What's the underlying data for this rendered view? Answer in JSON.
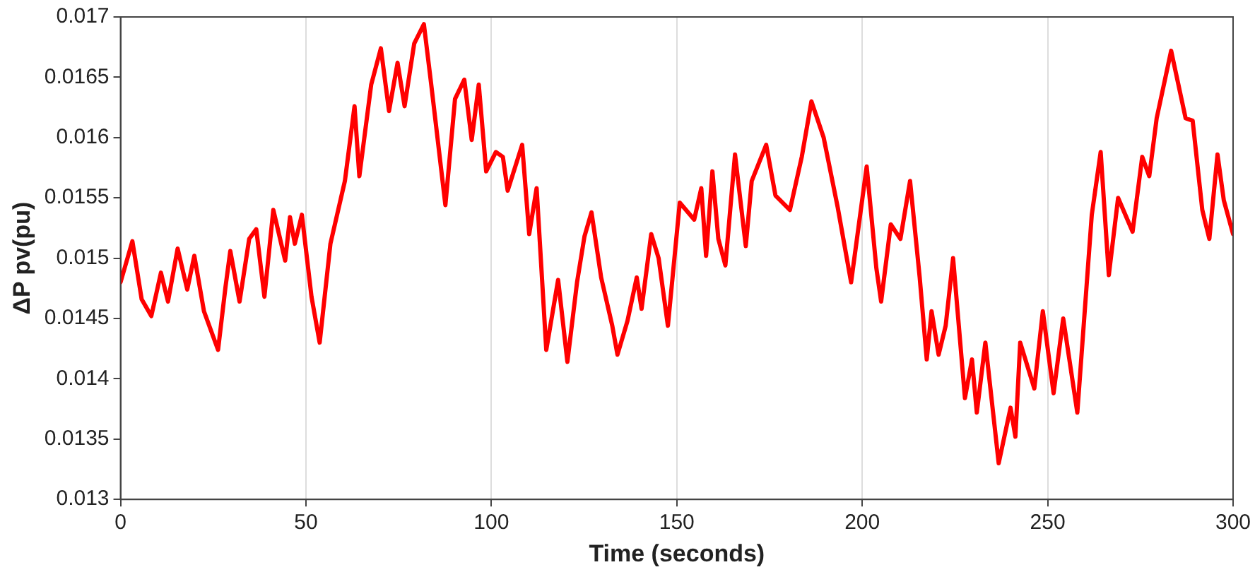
{
  "chart_data": {
    "type": "line",
    "xlabel": "Time (seconds)",
    "ylabel": "ΔP pv(pu)",
    "xlim": [
      0,
      300
    ],
    "xticks": [
      0,
      50,
      100,
      150,
      200,
      250,
      300
    ],
    "ylim": [
      0.013,
      0.017
    ],
    "yticks": [
      0.013,
      0.0135,
      0.014,
      0.0145,
      0.015,
      0.0155,
      0.016,
      0.0165,
      0.017
    ],
    "grid": "x",
    "legend": false,
    "marker": "none",
    "line_style": "solid",
    "series": [
      {
        "color": "#ff0000",
        "x": [
          0,
          3.2,
          5.7,
          8.3,
          10.9,
          12.8,
          15.4,
          18,
          19.9,
          22.5,
          26.3,
          28.3,
          29.6,
          32.1,
          34.7,
          36.6,
          38.8,
          41.2,
          44.4,
          45.7,
          47,
          48.9,
          51.5,
          53.7,
          56.6,
          60.5,
          63.1,
          64.4,
          67.6,
          70.2,
          72.4,
          74.7,
          76.6,
          79.2,
          81.8,
          83.7,
          87.6,
          90.2,
          92.7,
          94.7,
          96.6,
          98.6,
          101.2,
          103.1,
          104.4,
          108.3,
          110.2,
          112.2,
          114.8,
          118,
          120.5,
          123.1,
          125.1,
          127,
          129.6,
          132.6,
          134,
          136.7,
          139.2,
          140.5,
          143.1,
          145.1,
          147.6,
          150.8,
          154.7,
          156.6,
          157.9,
          159.6,
          161.2,
          163.1,
          165.7,
          168.6,
          170.2,
          174.1,
          176.6,
          180.5,
          183.7,
          186.3,
          189.6,
          193.4,
          197,
          201.2,
          203.8,
          205.1,
          207.7,
          210.3,
          212.9,
          215.5,
          217.4,
          218.7,
          220.6,
          222.5,
          224.5,
          227.7,
          229.6,
          230.9,
          233.2,
          236.8,
          240,
          241.3,
          242.6,
          246.4,
          248.7,
          251.6,
          254.2,
          258,
          261.9,
          264.3,
          266.5,
          269,
          272.9,
          275.5,
          277.4,
          279.4,
          283.3,
          287.2,
          289.1,
          291.7,
          293.6,
          295.8,
          297.5,
          300
        ],
        "values": [
          0.0148,
          0.01514,
          0.01466,
          0.01452,
          0.01488,
          0.01464,
          0.01508,
          0.01474,
          0.01502,
          0.01456,
          0.01424,
          0.01476,
          0.01506,
          0.01464,
          0.01516,
          0.01524,
          0.01468,
          0.0154,
          0.01498,
          0.01534,
          0.01512,
          0.01536,
          0.01468,
          0.0143,
          0.01512,
          0.01564,
          0.01626,
          0.01568,
          0.01644,
          0.01674,
          0.01622,
          0.01662,
          0.01626,
          0.01678,
          0.01694,
          0.01646,
          0.01544,
          0.01632,
          0.01648,
          0.01598,
          0.01644,
          0.01572,
          0.01588,
          0.01584,
          0.01556,
          0.01594,
          0.0152,
          0.01558,
          0.01424,
          0.01482,
          0.01414,
          0.0148,
          0.01518,
          0.01538,
          0.01484,
          0.01444,
          0.0142,
          0.01448,
          0.01484,
          0.01458,
          0.0152,
          0.015,
          0.01444,
          0.01546,
          0.01532,
          0.01558,
          0.01502,
          0.01572,
          0.01516,
          0.01494,
          0.01586,
          0.0151,
          0.01564,
          0.01594,
          0.01552,
          0.0154,
          0.01584,
          0.0163,
          0.016,
          0.01542,
          0.0148,
          0.01576,
          0.01492,
          0.01464,
          0.01528,
          0.01516,
          0.01564,
          0.01484,
          0.01416,
          0.01456,
          0.0142,
          0.01444,
          0.015,
          0.01384,
          0.01416,
          0.01372,
          0.0143,
          0.0133,
          0.01376,
          0.01352,
          0.0143,
          0.01392,
          0.01456,
          0.01388,
          0.0145,
          0.01372,
          0.01536,
          0.01588,
          0.01486,
          0.0155,
          0.01522,
          0.01584,
          0.01568,
          0.01616,
          0.01672,
          0.01616,
          0.01614,
          0.0154,
          0.01516,
          0.01586,
          0.01548,
          0.0152
        ]
      }
    ]
  }
}
